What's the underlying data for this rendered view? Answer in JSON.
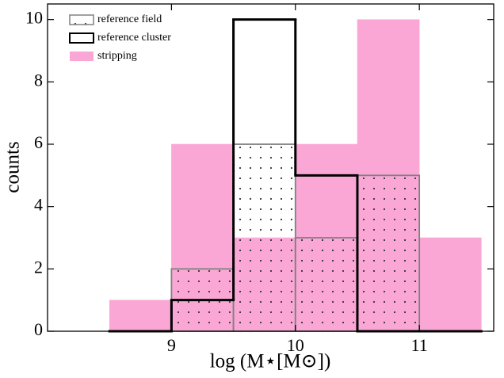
{
  "chart_data": {
    "type": "histogram",
    "x_label": "log (M⋆[M⊙])",
    "y_label": "counts",
    "bins": [
      8.5,
      9,
      9.5,
      10,
      10.5,
      11,
      11.5
    ],
    "series": [
      {
        "name": "stripping",
        "color": "#fba7d6",
        "style": "fill",
        "values": [
          1,
          6,
          3,
          6,
          10,
          3
        ]
      },
      {
        "name": "reference field",
        "color": "#808080",
        "style": "dots",
        "values": [
          0,
          2,
          6,
          3,
          5,
          0
        ]
      },
      {
        "name": "reference cluster",
        "color": "#000000",
        "style": "step",
        "values": [
          0,
          1,
          10,
          5,
          0,
          0
        ]
      }
    ],
    "legend_order": [
      1,
      2,
      0
    ],
    "legend": "upper left",
    "xlim": [
      8,
      11.6
    ],
    "ylim": [
      0,
      10.5
    ],
    "xticks": [
      9,
      10,
      11
    ],
    "yticks": [
      0,
      2,
      4,
      6,
      8,
      10
    ]
  }
}
